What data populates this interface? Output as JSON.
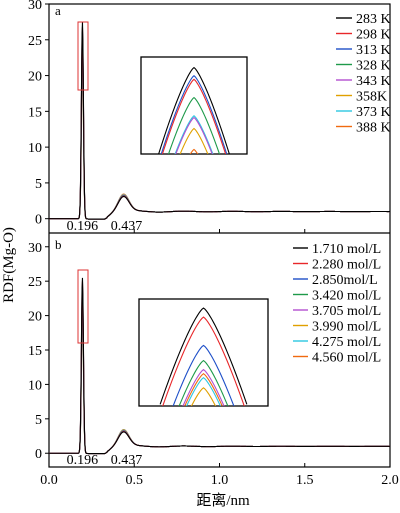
{
  "figure": {
    "ylabel": "RDF(Mg-O)",
    "xlabel": "距离/nm"
  },
  "chart_data": [
    {
      "panel": "a",
      "type": "line",
      "xlim": [
        0.0,
        2.0
      ],
      "ylim": [
        -2,
        30
      ],
      "yticks": [
        0,
        5,
        10,
        15,
        20,
        25,
        30
      ],
      "peak_labels": [
        "0.196",
        "0.437"
      ],
      "peak_positions": [
        0.196,
        0.437
      ],
      "legend_position": "top-right",
      "series": [
        {
          "name": "283 K",
          "color": "#000000",
          "peak": 27.5,
          "inset": 0.95
        },
        {
          "name": "298 K",
          "color": "#e8272a",
          "peak": 26.8,
          "inset": 0.82
        },
        {
          "name": "313 K",
          "color": "#1e4fc8",
          "peak": 26.2,
          "inset": 0.86
        },
        {
          "name": "328 K",
          "color": "#1e9a4a",
          "peak": 25.5,
          "inset": 0.62
        },
        {
          "name": "343 K",
          "color": "#b34fd0",
          "peak": 24.8,
          "inset": 0.4
        },
        {
          "name": "358K",
          "color": "#e0a000",
          "peak": 24.0,
          "inset": 0.28
        },
        {
          "name": "373 K",
          "color": "#2cc8e0",
          "peak": 23.5,
          "inset": 0.42
        },
        {
          "name": "388 K",
          "color": "#f06a10",
          "peak": 22.5,
          "inset": 0.05
        }
      ]
    },
    {
      "panel": "b",
      "type": "line",
      "xlim": [
        0.0,
        2.0
      ],
      "ylim": [
        -2,
        32
      ],
      "xticks": [
        0.0,
        0.5,
        1.0,
        1.5,
        2.0
      ],
      "yticks": [
        0,
        5,
        10,
        15,
        20,
        25,
        30
      ],
      "peak_labels": [
        "0.196",
        "0.437"
      ],
      "peak_positions": [
        0.196,
        0.437
      ],
      "legend_position": "top-right",
      "series": [
        {
          "name": "1.710 mol/L",
          "color": "#000000",
          "peak": 25.5,
          "inset": 0.97
        },
        {
          "name": "2.280 mol/L",
          "color": "#e8272a",
          "peak": 25.0,
          "inset": 0.88
        },
        {
          "name": "2.850mol/L",
          "color": "#1e4fc8",
          "peak": 24.2,
          "inset": 0.6
        },
        {
          "name": "3.420 mol/L",
          "color": "#1e9a4a",
          "peak": 23.5,
          "inset": 0.45
        },
        {
          "name": "3.705 mol/L",
          "color": "#b34fd0",
          "peak": 22.8,
          "inset": 0.36
        },
        {
          "name": "3.990 mol/L",
          "color": "#e0a000",
          "peak": 22.0,
          "inset": 0.18
        },
        {
          "name": "4.275 mol/L",
          "color": "#2cc8e0",
          "peak": 21.5,
          "inset": 0.28
        },
        {
          "name": "4.560 mol/L",
          "color": "#f06a10",
          "peak": 21.0,
          "inset": 0.32
        }
      ]
    }
  ]
}
